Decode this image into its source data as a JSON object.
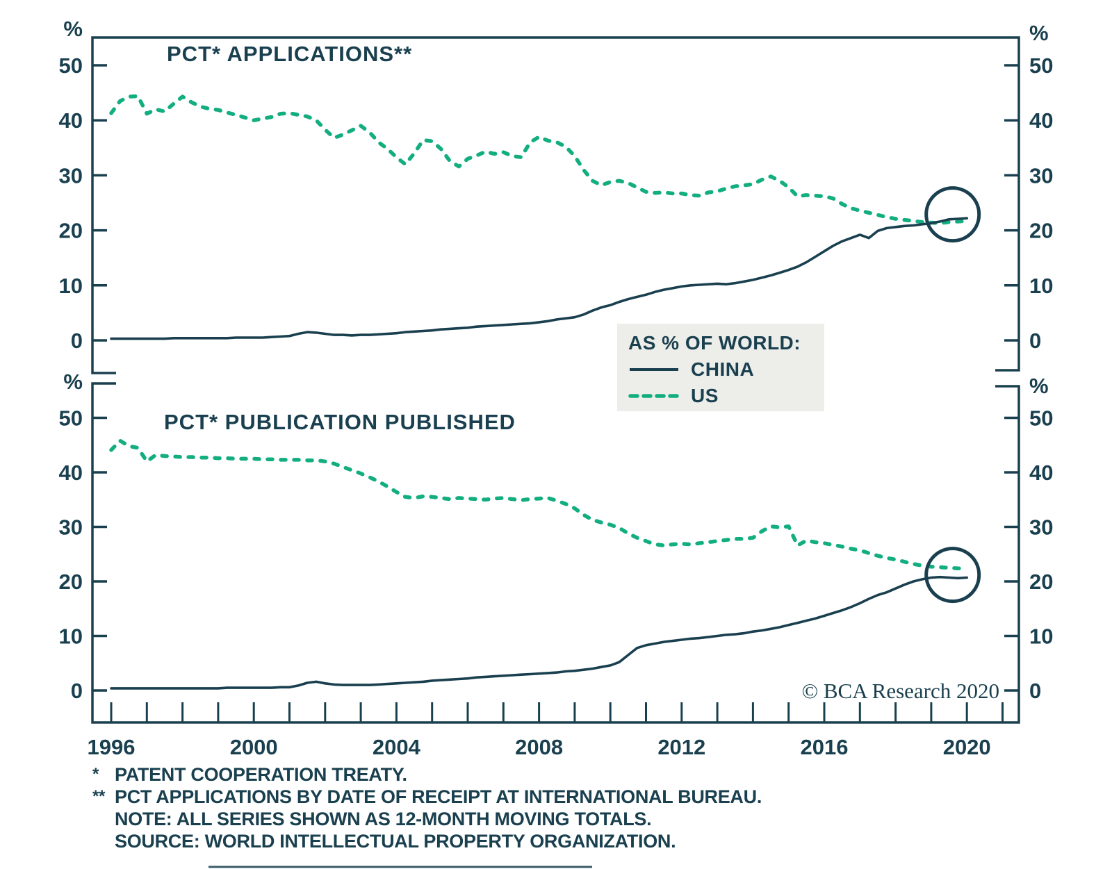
{
  "figure": {
    "copyright": "© BCA Research 2020",
    "unit": "%"
  },
  "legend": {
    "title": "AS % OF WORLD:",
    "items": [
      {
        "label": "CHINA",
        "style": "solid"
      },
      {
        "label": "US",
        "style": "dashed"
      }
    ]
  },
  "footnotes": [
    {
      "marker": "*",
      "text": "PATENT COOPERATION TREATY."
    },
    {
      "marker": "**",
      "text": "PCT APPLICATIONS BY DATE OF RECEIPT AT INTERNATIONAL BUREAU."
    },
    {
      "marker": "",
      "text": "NOTE: ALL SERIES SHOWN AS 12-MONTH MOVING TOTALS."
    },
    {
      "marker": "",
      "text": "SOURCE: WORLD INTELLECTUAL PROPERTY ORGANIZATION."
    }
  ],
  "colors": {
    "ink": "#1A404F",
    "us_green": "#12AE80",
    "legend_bg": "#EDEEEA",
    "background": "#FFFFFF"
  },
  "chart_data": {
    "type": "line",
    "x_axis": {
      "tick_label_years": [
        1996,
        2000,
        2004,
        2008,
        2012,
        2016,
        2020
      ],
      "minor_tick_step_years": 1,
      "range": [
        1995.5,
        2021.5
      ]
    },
    "y_axis": {
      "unit": "%",
      "ticks": [
        0,
        10,
        20,
        30,
        40,
        50
      ],
      "range": [
        0,
        55
      ]
    },
    "panels": [
      {
        "title": "PCT* APPLICATIONS**",
        "annotation_circle": {
          "year": 2019.6,
          "value": 22.9
        },
        "series": [
          {
            "name": "US",
            "style": "dashed",
            "start": 1996,
            "step": 0.25,
            "values": [
              41.3,
              43.5,
              44.3,
              44.4,
              41.2,
              42.0,
              41.6,
              43.0,
              44.3,
              43.3,
              42.5,
              42.1,
              41.9,
              41.4,
              41.0,
              40.5,
              40.0,
              40.3,
              40.6,
              41.2,
              41.3,
              41.0,
              40.7,
              40.0,
              38.3,
              36.8,
              37.4,
              38.2,
              39.0,
              37.8,
              36.0,
              34.8,
              33.3,
              32.0,
              34.0,
              36.4,
              36.2,
              34.8,
              32.6,
              31.6,
              33.0,
              33.6,
              34.3,
              33.9,
              34.2,
              33.5,
              33.3,
              36.0,
              37.0,
              36.3,
              36.0,
              35.2,
              33.5,
              31.0,
              29.0,
              28.2,
              28.8,
              29.0,
              28.6,
              27.8,
              27.0,
              26.8,
              26.9,
              26.7,
              26.7,
              26.4,
              26.3,
              26.9,
              27.1,
              27.6,
              28.0,
              28.2,
              28.4,
              29.2,
              29.8,
              29.0,
              27.8,
              26.2,
              26.4,
              26.3,
              26.2,
              25.8,
              24.8,
              24.0,
              23.6,
              23.2,
              22.8,
              22.4,
              22.1,
              21.9,
              21.7,
              21.5,
              21.4,
              21.3,
              21.5,
              21.6,
              21.7
            ]
          },
          {
            "name": "CHINA",
            "style": "solid",
            "start": 1996,
            "step": 0.25,
            "values": [
              0.3,
              0.3,
              0.3,
              0.3,
              0.3,
              0.3,
              0.3,
              0.4,
              0.4,
              0.4,
              0.4,
              0.4,
              0.4,
              0.4,
              0.5,
              0.5,
              0.5,
              0.5,
              0.6,
              0.7,
              0.8,
              1.2,
              1.5,
              1.4,
              1.2,
              1.0,
              1.0,
              0.9,
              1.0,
              1.0,
              1.1,
              1.2,
              1.3,
              1.5,
              1.6,
              1.7,
              1.8,
              2.0,
              2.1,
              2.2,
              2.3,
              2.5,
              2.6,
              2.7,
              2.8,
              2.9,
              3.0,
              3.1,
              3.3,
              3.5,
              3.8,
              4.0,
              4.2,
              4.7,
              5.4,
              6.0,
              6.4,
              7.0,
              7.5,
              7.9,
              8.3,
              8.8,
              9.2,
              9.5,
              9.8,
              10.0,
              10.1,
              10.2,
              10.3,
              10.2,
              10.4,
              10.7,
              11.0,
              11.4,
              11.8,
              12.3,
              12.8,
              13.4,
              14.2,
              15.2,
              16.2,
              17.2,
              18.0,
              18.6,
              19.2,
              18.6,
              19.9,
              20.4,
              20.6,
              20.8,
              20.9,
              21.1,
              21.3,
              21.6,
              22.0,
              22.1,
              22.2
            ]
          }
        ]
      },
      {
        "title": "PCT* PUBLICATION PUBLISHED",
        "annotation_circle": {
          "year": 2019.6,
          "value": 21.2
        },
        "series": [
          {
            "name": "US",
            "style": "dashed",
            "start": 1996,
            "step": 0.25,
            "values": [
              44.1,
              45.8,
              44.8,
              44.5,
              42.0,
              43.2,
              43.0,
              42.9,
              42.8,
              42.8,
              42.7,
              42.7,
              42.6,
              42.6,
              42.5,
              42.5,
              42.5,
              42.4,
              42.4,
              42.3,
              42.3,
              42.3,
              42.2,
              42.2,
              42.0,
              41.6,
              41.0,
              40.4,
              39.8,
              39.1,
              38.3,
              37.4,
              36.4,
              35.5,
              35.3,
              35.6,
              35.5,
              35.3,
              35.1,
              35.3,
              35.2,
              35.1,
              35.0,
              35.2,
              35.3,
              35.1,
              34.9,
              35.1,
              35.2,
              35.3,
              34.8,
              34.2,
              33.4,
              32.2,
              31.3,
              30.8,
              30.4,
              29.8,
              28.8,
              28.0,
              27.4,
              26.8,
              26.6,
              26.8,
              26.9,
              26.8,
              27.0,
              27.2,
              27.4,
              27.6,
              27.8,
              27.8,
              28.0,
              29.2,
              30.1,
              29.9,
              30.1,
              26.6,
              27.5,
              27.2,
              27.0,
              26.7,
              26.4,
              26.0,
              25.7,
              25.2,
              24.7,
              24.3,
              24.0,
              23.6,
              23.2,
              22.9,
              22.7,
              22.6,
              22.5,
              22.4,
              22.4
            ]
          },
          {
            "name": "CHINA",
            "style": "solid",
            "start": 1996,
            "step": 0.25,
            "values": [
              0.4,
              0.4,
              0.4,
              0.4,
              0.4,
              0.4,
              0.4,
              0.4,
              0.4,
              0.4,
              0.4,
              0.4,
              0.4,
              0.5,
              0.5,
              0.5,
              0.5,
              0.5,
              0.5,
              0.6,
              0.6,
              0.9,
              1.4,
              1.6,
              1.3,
              1.1,
              1.0,
              1.0,
              1.0,
              1.0,
              1.1,
              1.2,
              1.3,
              1.4,
              1.5,
              1.6,
              1.8,
              1.9,
              2.0,
              2.1,
              2.2,
              2.4,
              2.5,
              2.6,
              2.7,
              2.8,
              2.9,
              3.0,
              3.1,
              3.2,
              3.3,
              3.5,
              3.6,
              3.8,
              4.0,
              4.3,
              4.6,
              5.2,
              6.5,
              7.8,
              8.3,
              8.6,
              8.9,
              9.1,
              9.3,
              9.5,
              9.6,
              9.8,
              10.0,
              10.2,
              10.3,
              10.5,
              10.8,
              11.0,
              11.3,
              11.6,
              12.0,
              12.4,
              12.8,
              13.2,
              13.7,
              14.2,
              14.7,
              15.3,
              16.0,
              16.8,
              17.5,
              18.0,
              18.7,
              19.4,
              20.0,
              20.4,
              20.7,
              20.8,
              20.7,
              20.6,
              20.7
            ]
          }
        ]
      }
    ]
  }
}
